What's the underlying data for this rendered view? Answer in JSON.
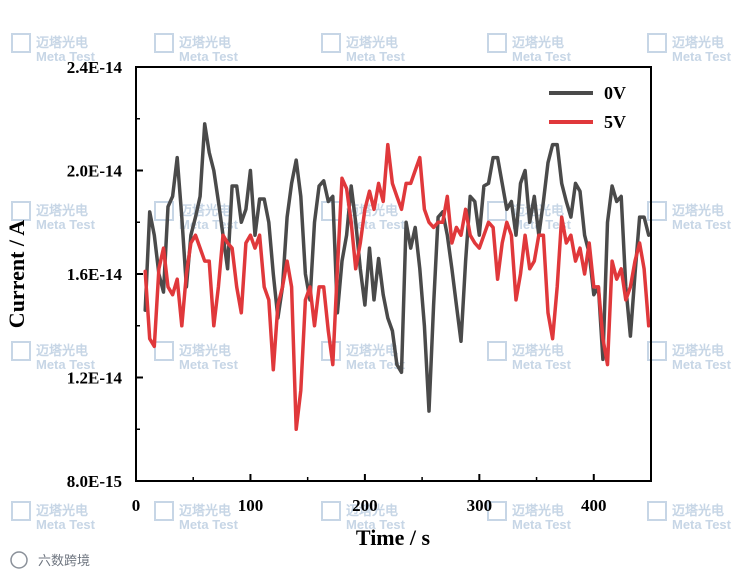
{
  "chart_data": {
    "type": "line",
    "xlabel": "Time / s",
    "ylabel": "Current / A",
    "xlim": [
      0,
      450
    ],
    "ylim": [
      8e-15,
      2.4e-14
    ],
    "xticks": [
      "0",
      "100",
      "200",
      "300",
      "400"
    ],
    "xtick_values": [
      0,
      100,
      200,
      300,
      400
    ],
    "yticks": [
      "8.0E-15",
      "1.2E-14",
      "1.6E-14",
      "2.0E-14",
      "2.4E-14"
    ],
    "ytick_values": [
      8e-15,
      1.2e-14,
      1.6e-14,
      2e-14,
      2.4e-14
    ],
    "grid": false,
    "legend_position": "top-right",
    "series": [
      {
        "name": "0V",
        "color": "#4a4a4a",
        "x": [
          8,
          12,
          16,
          20,
          24,
          28,
          32,
          36,
          40,
          44,
          48,
          52,
          56,
          60,
          64,
          68,
          72,
          76,
          80,
          84,
          88,
          92,
          96,
          100,
          104,
          108,
          112,
          116,
          120,
          124,
          128,
          132,
          136,
          140,
          144,
          148,
          152,
          156,
          160,
          164,
          168,
          172,
          176,
          180,
          184,
          188,
          192,
          196,
          200,
          204,
          208,
          212,
          216,
          220,
          224,
          228,
          232,
          236,
          240,
          244,
          248,
          252,
          256,
          260,
          264,
          268,
          272,
          276,
          280,
          284,
          288,
          292,
          296,
          300,
          304,
          308,
          312,
          316,
          320,
          324,
          328,
          332,
          336,
          340,
          344,
          348,
          352,
          356,
          360,
          364,
          368,
          372,
          376,
          380,
          384,
          388,
          392,
          396,
          400,
          404,
          408,
          412,
          416,
          420,
          424,
          428,
          432,
          436,
          440,
          444,
          448
        ],
        "y": [
          1.46e-14,
          1.84e-14,
          1.75e-14,
          1.6e-14,
          1.53e-14,
          1.86e-14,
          1.9e-14,
          2.05e-14,
          1.82e-14,
          1.55e-14,
          1.75e-14,
          1.82e-14,
          1.9e-14,
          2.18e-14,
          2.07e-14,
          2e-14,
          1.88e-14,
          1.75e-14,
          1.62e-14,
          1.94e-14,
          1.94e-14,
          1.8e-14,
          1.85e-14,
          2e-14,
          1.75e-14,
          1.89e-14,
          1.89e-14,
          1.8e-14,
          1.6e-14,
          1.43e-14,
          1.55e-14,
          1.82e-14,
          1.95e-14,
          2.04e-14,
          1.9e-14,
          1.6e-14,
          1.5e-14,
          1.8e-14,
          1.94e-14,
          1.96e-14,
          1.88e-14,
          1.9e-14,
          1.45e-14,
          1.65e-14,
          1.75e-14,
          1.94e-14,
          1.8e-14,
          1.62e-14,
          1.48e-14,
          1.7e-14,
          1.5e-14,
          1.66e-14,
          1.52e-14,
          1.43e-14,
          1.38e-14,
          1.25e-14,
          1.22e-14,
          1.8e-14,
          1.7e-14,
          1.78e-14,
          1.62e-14,
          1.4e-14,
          1.07e-14,
          1.48e-14,
          1.82e-14,
          1.84e-14,
          1.75e-14,
          1.62e-14,
          1.48e-14,
          1.34e-14,
          1.65e-14,
          1.9e-14,
          1.88e-14,
          1.75e-14,
          1.94e-14,
          1.95e-14,
          2.05e-14,
          2.05e-14,
          1.95e-14,
          1.85e-14,
          1.88e-14,
          1.75e-14,
          1.95e-14,
          2e-14,
          1.8e-14,
          1.9e-14,
          1.75e-14,
          1.88e-14,
          2.03e-14,
          2.1e-14,
          2.1e-14,
          1.95e-14,
          1.88e-14,
          1.82e-14,
          1.95e-14,
          1.92e-14,
          1.75e-14,
          1.68e-14,
          1.52e-14,
          1.55e-14,
          1.27e-14,
          1.8e-14,
          1.94e-14,
          1.88e-14,
          1.9e-14,
          1.55e-14,
          1.36e-14,
          1.6e-14,
          1.82e-14,
          1.82e-14,
          1.75e-14
        ]
      },
      {
        "name": "5V",
        "color": "#e0383b",
        "x": [
          8,
          12,
          16,
          20,
          24,
          28,
          32,
          36,
          40,
          44,
          48,
          52,
          56,
          60,
          64,
          68,
          72,
          76,
          80,
          84,
          88,
          92,
          96,
          100,
          104,
          108,
          112,
          116,
          120,
          124,
          128,
          132,
          136,
          140,
          144,
          148,
          152,
          156,
          160,
          164,
          168,
          172,
          176,
          180,
          184,
          188,
          192,
          196,
          200,
          204,
          208,
          212,
          216,
          220,
          224,
          228,
          232,
          236,
          240,
          244,
          248,
          252,
          256,
          260,
          264,
          268,
          272,
          276,
          280,
          284,
          288,
          292,
          296,
          300,
          304,
          308,
          312,
          316,
          320,
          324,
          328,
          332,
          336,
          340,
          344,
          348,
          352,
          356,
          360,
          364,
          368,
          372,
          376,
          380,
          384,
          388,
          392,
          396,
          400,
          404,
          408,
          412,
          416,
          420,
          424,
          428,
          432,
          436,
          440,
          444,
          448
        ],
        "y": [
          1.61e-14,
          1.35e-14,
          1.32e-14,
          1.62e-14,
          1.7e-14,
          1.55e-14,
          1.52e-14,
          1.58e-14,
          1.4e-14,
          1.6e-14,
          1.72e-14,
          1.75e-14,
          1.7e-14,
          1.65e-14,
          1.65e-14,
          1.4e-14,
          1.55e-14,
          1.75e-14,
          1.72e-14,
          1.7e-14,
          1.55e-14,
          1.45e-14,
          1.72e-14,
          1.75e-14,
          1.7e-14,
          1.75e-14,
          1.55e-14,
          1.5e-14,
          1.23e-14,
          1.48e-14,
          1.55e-14,
          1.65e-14,
          1.55e-14,
          1e-14,
          1.15e-14,
          1.5e-14,
          1.55e-14,
          1.4e-14,
          1.55e-14,
          1.55e-14,
          1.38e-14,
          1.25e-14,
          1.62e-14,
          1.97e-14,
          1.93e-14,
          1.8e-14,
          1.62e-14,
          1.72e-14,
          1.85e-14,
          1.92e-14,
          1.85e-14,
          1.95e-14,
          1.88e-14,
          2.1e-14,
          1.95e-14,
          1.9e-14,
          1.85e-14,
          1.95e-14,
          1.95e-14,
          2e-14,
          2.05e-14,
          1.85e-14,
          1.8e-14,
          1.78e-14,
          1.8e-14,
          1.8e-14,
          1.9e-14,
          1.72e-14,
          1.78e-14,
          1.75e-14,
          1.85e-14,
          1.75e-14,
          1.72e-14,
          1.7e-14,
          1.75e-14,
          1.8e-14,
          1.78e-14,
          1.58e-14,
          1.72e-14,
          1.8e-14,
          1.75e-14,
          1.5e-14,
          1.6e-14,
          1.75e-14,
          1.62e-14,
          1.65e-14,
          1.75e-14,
          1.75e-14,
          1.45e-14,
          1.35e-14,
          1.55e-14,
          1.82e-14,
          1.72e-14,
          1.75e-14,
          1.65e-14,
          1.7e-14,
          1.6e-14,
          1.72e-14,
          1.55e-14,
          1.55e-14,
          1.35e-14,
          1.25e-14,
          1.65e-14,
          1.58e-14,
          1.62e-14,
          1.5e-14,
          1.55e-14,
          1.65e-14,
          1.72e-14,
          1.62e-14,
          1.4e-14
        ]
      }
    ]
  },
  "watermark": {
    "cn": "迈塔光电",
    "en": "Meta Test"
  },
  "footer": {
    "text": "六数跨境"
  }
}
